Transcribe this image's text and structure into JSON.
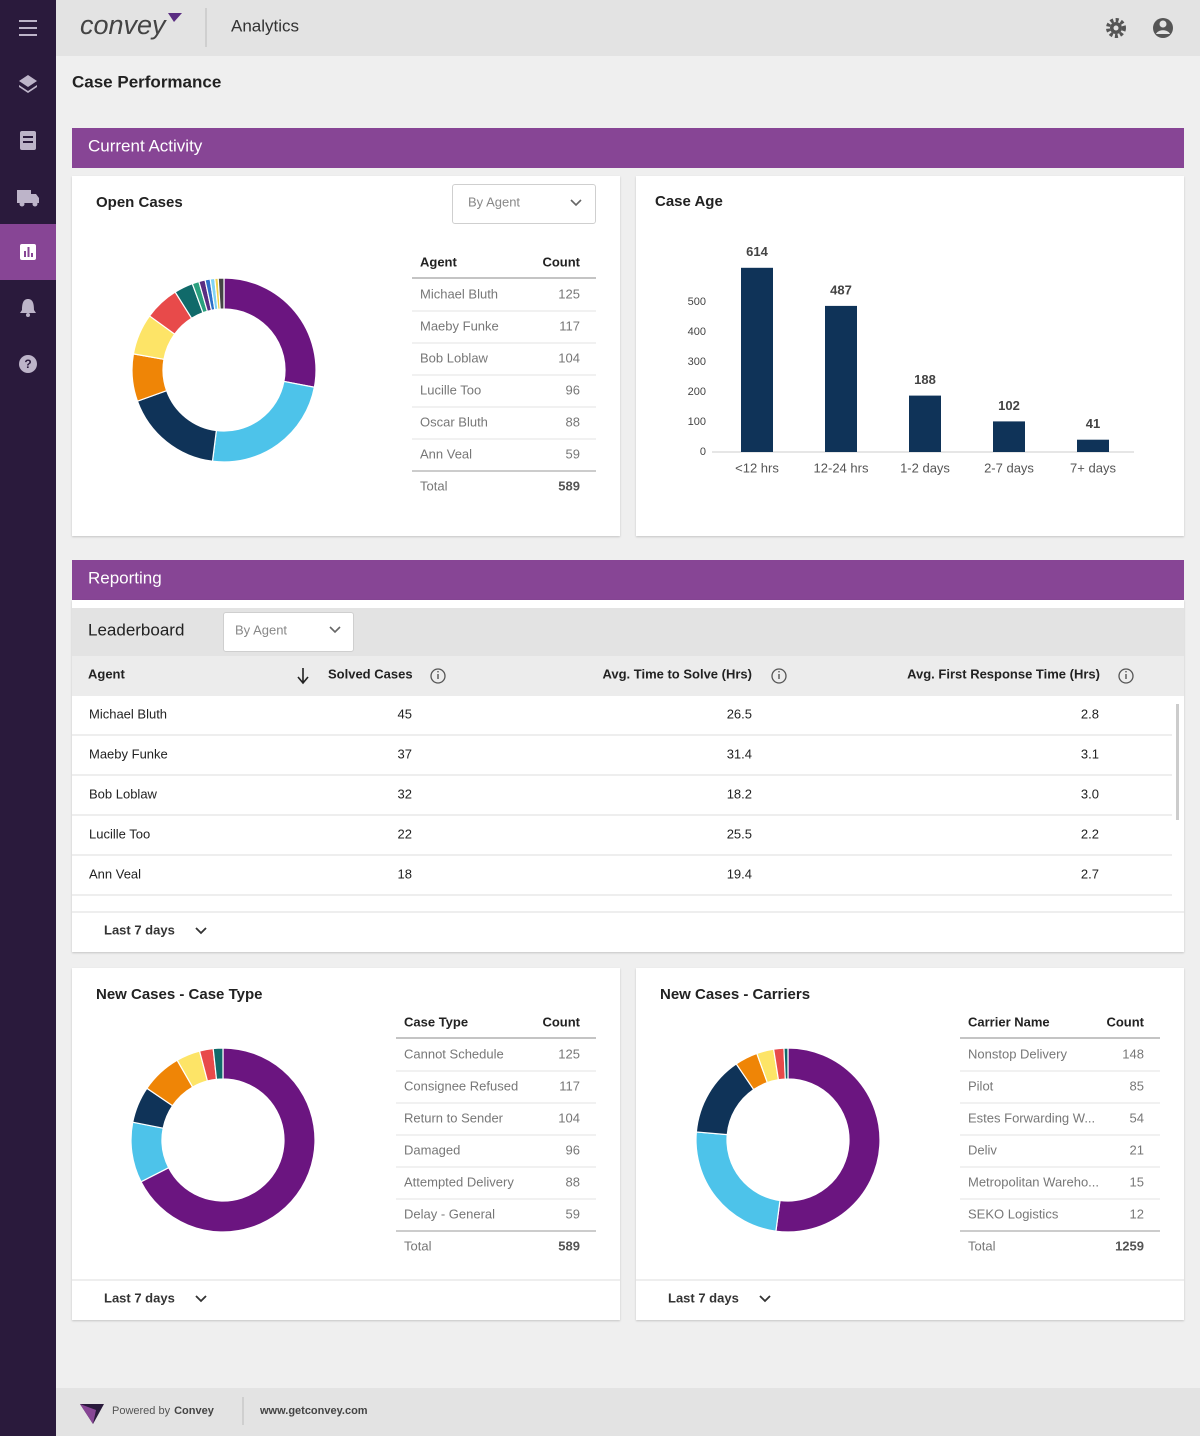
{
  "nav": {
    "brand": "convey",
    "app": "Analytics"
  },
  "page_title": "Case Performance",
  "sections": [
    "Current Activity",
    "Reporting"
  ],
  "open_cases": {
    "filter": "By Agent",
    "columns": [
      "Agent",
      "Count"
    ],
    "rows": [
      [
        "Michael Bluth",
        125
      ],
      [
        "Maeby Funke",
        117
      ],
      [
        "Bob Loblaw",
        104
      ],
      [
        "Lucille Too",
        96
      ],
      [
        "Oscar Bluth",
        88
      ],
      [
        "Ann Veal",
        59
      ]
    ],
    "total_label": "Total",
    "total": 589
  },
  "leaderboard": {
    "title": "Leaderboard",
    "filter": "By Agent",
    "columns": [
      "Agent",
      "Solved Cases",
      "Avg. Time to Solve (Hrs)",
      "Avg. First Response Time (Hrs)"
    ],
    "rows": [
      [
        "Michael Bluth",
        45,
        26.5,
        2.8
      ],
      [
        "Maeby Funke",
        37,
        31.4,
        3.1
      ],
      [
        "Bob Loblaw",
        32,
        18.2,
        "3.0"
      ],
      [
        "Lucille Too",
        22,
        25.5,
        2.2
      ],
      [
        "Ann Veal",
        18,
        19.4,
        2.7
      ]
    ],
    "period": "Last 7 days"
  },
  "case_type": {
    "columns": [
      "Case Type",
      "Count"
    ],
    "rows": [
      [
        "Cannot Schedule",
        125
      ],
      [
        "Consignee Refused",
        117
      ],
      [
        "Return to Sender",
        104
      ],
      [
        "Damaged",
        96
      ],
      [
        "Attempted Delivery",
        88
      ],
      [
        "Delay - General",
        59
      ]
    ],
    "total_label": "Total",
    "total": 589,
    "period": "Last 7 days"
  },
  "carriers": {
    "columns": [
      "Carrier Name",
      "Count"
    ],
    "rows": [
      [
        "Nonstop Delivery",
        148
      ],
      [
        "Pilot",
        85
      ],
      [
        "Estes Forwarding W...",
        54
      ],
      [
        "Deliv",
        21
      ],
      [
        "Metropolitan Wareho...",
        15
      ],
      [
        "SEKO Logistics",
        12
      ]
    ],
    "total_label": "Total",
    "total": 1259,
    "period": "Last 7 days"
  },
  "chart_data": [
    {
      "type": "pie",
      "title": "Open Cases",
      "values": [
        28,
        24,
        17.5,
        8.3,
        7.2,
        6.1,
        3.3,
        1.2,
        1.1,
        0.9,
        0.8,
        0.6,
        1.0
      ],
      "colors": [
        "#6b1580",
        "#4dc3ea",
        "#0f3358",
        "#ef8506",
        "#fde467",
        "#e84a4a",
        "#106a6a",
        "#2aa07e",
        "#5a2d82",
        "#2d6fc9",
        "#7fd3f2",
        "#f2d24b",
        "#444444"
      ]
    },
    {
      "type": "bar",
      "title": "Case Age",
      "categories": [
        "<12 hrs",
        "12-24 hrs",
        "1-2 days",
        "2-7 days",
        "7+ days"
      ],
      "values": [
        614,
        487,
        188,
        102,
        41
      ],
      "color": "#0f3358",
      "ylim": [
        0,
        650
      ],
      "yticks": [
        0,
        100,
        200,
        300,
        400,
        500
      ]
    },
    {
      "type": "pie",
      "title": "New Cases - Case Type",
      "values": [
        67.5,
        10.6,
        6.4,
        7.2,
        4.2,
        2.4,
        1.7
      ],
      "colors": [
        "#6b1580",
        "#4dc3ea",
        "#0f3358",
        "#ef8506",
        "#fde467",
        "#e84a4a",
        "#106a6a"
      ]
    },
    {
      "type": "pie",
      "title": "New Cases - Carriers",
      "values": [
        52.1,
        24.3,
        14.1,
        4,
        3,
        1.8,
        0.7
      ],
      "colors": [
        "#6b1580",
        "#4dc3ea",
        "#0f3358",
        "#ef8506",
        "#fde467",
        "#e84a4a",
        "#106a6a"
      ]
    }
  ],
  "footer": {
    "powered_by": "Powered by",
    "brand": "Convey",
    "url": "www.getconvey.com"
  }
}
